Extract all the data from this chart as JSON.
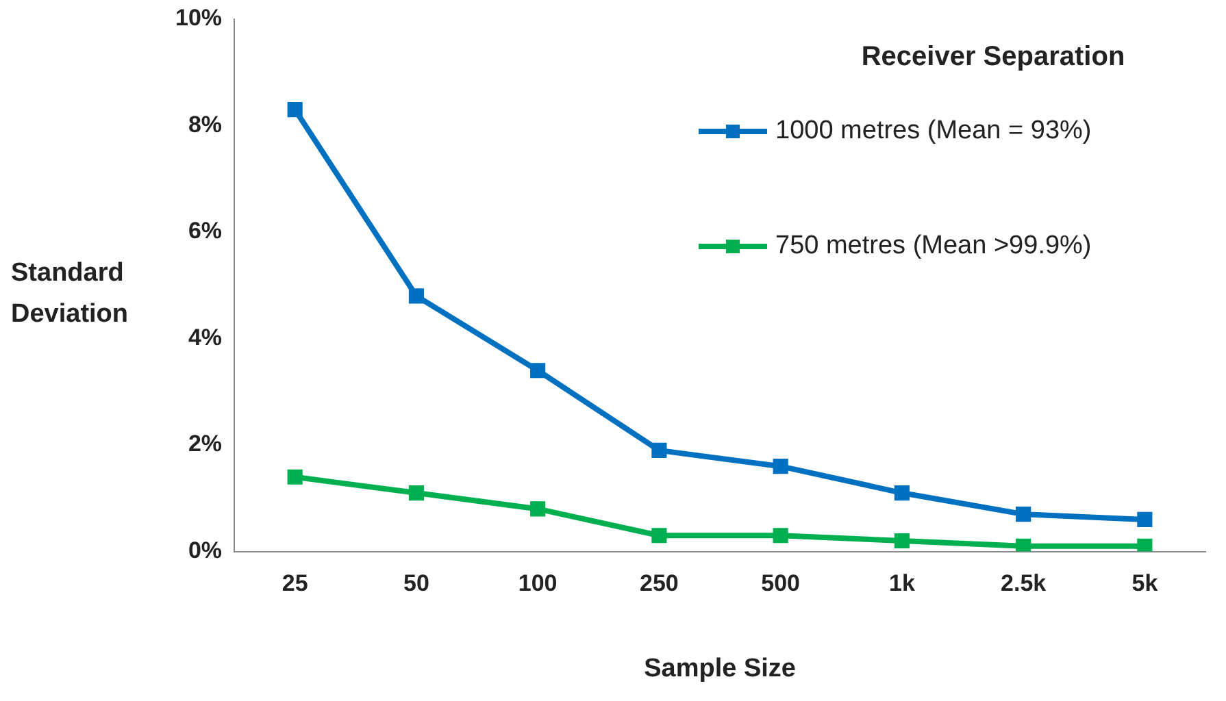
{
  "chart_data": {
    "type": "line",
    "xlabel": "Sample Size",
    "ylabel": "Standard Deviation",
    "legend_title": "Receiver Separation",
    "categories": [
      "25",
      "50",
      "100",
      "250",
      "500",
      "1k",
      "2.5k",
      "5k"
    ],
    "series": [
      {
        "name": "1000 metres (Mean = 93%)",
        "color": "#0070c0",
        "values": [
          8.3,
          4.8,
          3.4,
          1.9,
          1.6,
          1.1,
          0.7,
          0.6
        ]
      },
      {
        "name": "750 metres (Mean >99.9%)",
        "color": "#00b050",
        "values": [
          1.4,
          1.1,
          0.8,
          0.3,
          0.3,
          0.2,
          0.1,
          0.1
        ]
      }
    ],
    "ylim": [
      0,
      10
    ],
    "yticks": [
      {
        "value": 0,
        "label": "0%"
      },
      {
        "value": 2,
        "label": "2%"
      },
      {
        "value": 4,
        "label": "4%"
      },
      {
        "value": 6,
        "label": "6%"
      },
      {
        "value": 8,
        "label": "8%"
      },
      {
        "value": 10,
        "label": "10%"
      }
    ],
    "grid": false,
    "legend": "top right",
    "marker": "square",
    "line_style": "solid"
  }
}
